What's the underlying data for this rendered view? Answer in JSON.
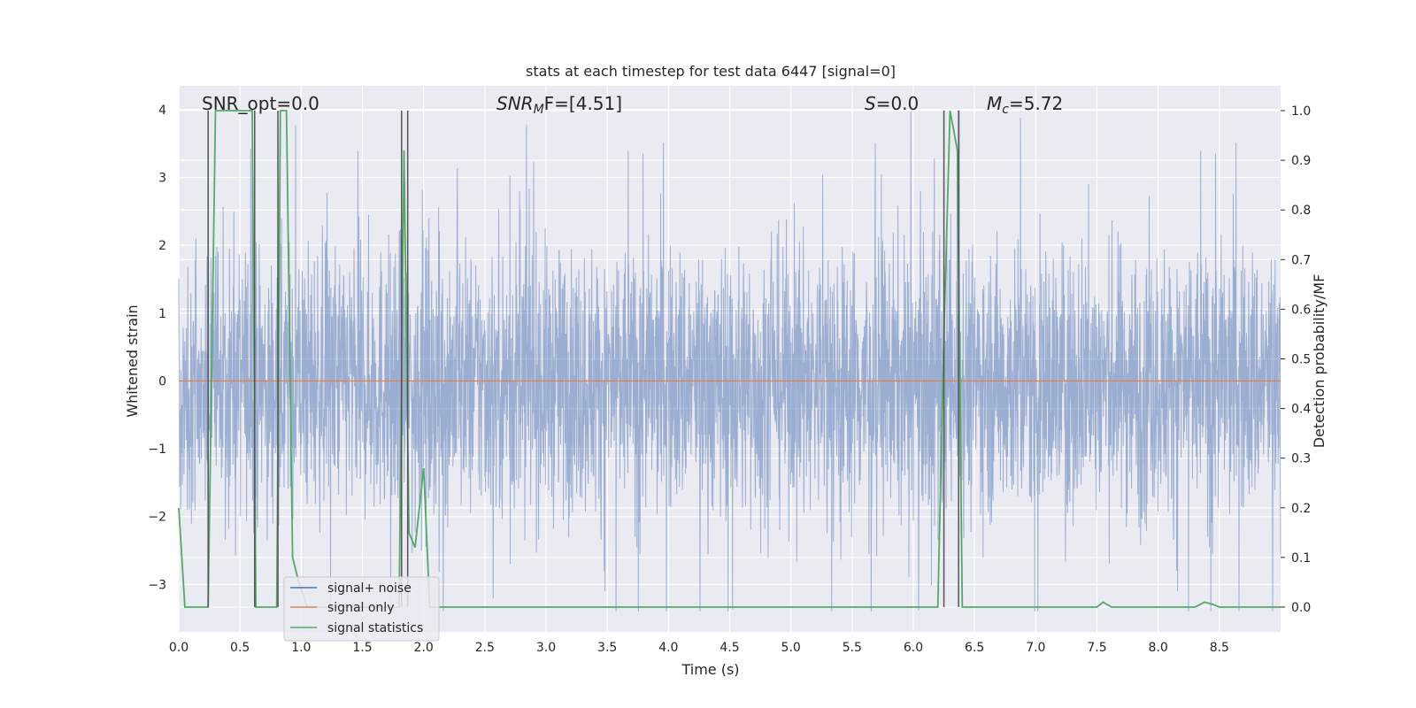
{
  "chart_data": {
    "type": "line",
    "title": "stats at each timestep for test data 6447 [signal=0]",
    "xlabel": "Time (s)",
    "ylabel": "Whitened strain",
    "y2label": "Detection probability/MF",
    "xlim": [
      0,
      9
    ],
    "ylim": [
      -3.7,
      4.35
    ],
    "y2lim": [
      -0.05,
      1.05
    ],
    "xticks": [
      "0.0",
      "0.5",
      "1.0",
      "1.5",
      "2.0",
      "2.5",
      "3.0",
      "3.5",
      "4.0",
      "4.5",
      "5.0",
      "5.5",
      "6.0",
      "6.5",
      "7.0",
      "7.5",
      "8.0",
      "8.5"
    ],
    "yticks": [
      "−3",
      "−2",
      "−1",
      "0",
      "1",
      "2",
      "3",
      "4"
    ],
    "y2ticks": [
      "0.0",
      "0.1",
      "0.2",
      "0.3",
      "0.4",
      "0.5",
      "0.6",
      "0.7",
      "0.8",
      "0.9",
      "1.0"
    ],
    "grid": true,
    "legend_position": "lower-left",
    "annotations": {
      "snr_opt": "SNR_opt=0.0",
      "snr_mf_main": "SNR",
      "snr_mf_sub": "M",
      "snr_mf_rest": "F=[4.51]",
      "s_italic": "S",
      "s_rest": "=0.0",
      "mc_main": "M",
      "mc_sub": "c",
      "mc_rest": "=5.72"
    },
    "series": [
      {
        "name": "signal+ noise",
        "color": "#4c72b0",
        "style": "random noise band, mostly within ±1.8 with spikes up to ~3.9 and down to ~-3.4",
        "amplitude_typical": 1.8,
        "amplitude_peak": 4.0
      },
      {
        "name": "signal only",
        "color": "#dd8452",
        "x": [
          0,
          9
        ],
        "y": [
          0,
          0
        ]
      },
      {
        "name": "signal statistics",
        "color": "#55a868",
        "axis": "right",
        "x": [
          0.0,
          0.05,
          0.1,
          0.2,
          0.24,
          0.3,
          0.4,
          0.5,
          0.6,
          0.63,
          0.7,
          0.75,
          0.8,
          0.83,
          0.88,
          0.93,
          0.98,
          1.05,
          1.1,
          1.5,
          1.8,
          1.84,
          1.88,
          1.93,
          2.0,
          2.05,
          2.1,
          2.15,
          2.5,
          3.0,
          4.0,
          5.0,
          6.0,
          6.2,
          6.25,
          6.3,
          6.36,
          6.4,
          6.45,
          6.5,
          7.0,
          7.5,
          7.55,
          7.62,
          7.7,
          8.0,
          8.3,
          8.38,
          8.45,
          8.5,
          9.0
        ],
        "y": [
          0.2,
          0.0,
          0.0,
          0.0,
          0.0,
          1.0,
          1.0,
          1.0,
          1.0,
          0.0,
          0.0,
          0.0,
          0.0,
          1.0,
          1.0,
          0.1,
          0.05,
          0.0,
          0.0,
          0.0,
          0.0,
          0.92,
          0.15,
          0.12,
          0.28,
          0.0,
          0.0,
          0.0,
          0.0,
          0.0,
          0.0,
          0.0,
          0.0,
          0.0,
          0.55,
          1.0,
          0.92,
          0.0,
          0.0,
          0.0,
          0.0,
          0.0,
          0.01,
          0.0,
          0.0,
          0.0,
          0.0,
          0.01,
          0.005,
          0.0,
          0.0
        ]
      }
    ],
    "vertical_lines_color": "#555555",
    "vertical_lines_x": [
      0.24,
      0.62,
      0.81,
      1.82,
      1.87,
      6.25,
      6.37
    ]
  }
}
